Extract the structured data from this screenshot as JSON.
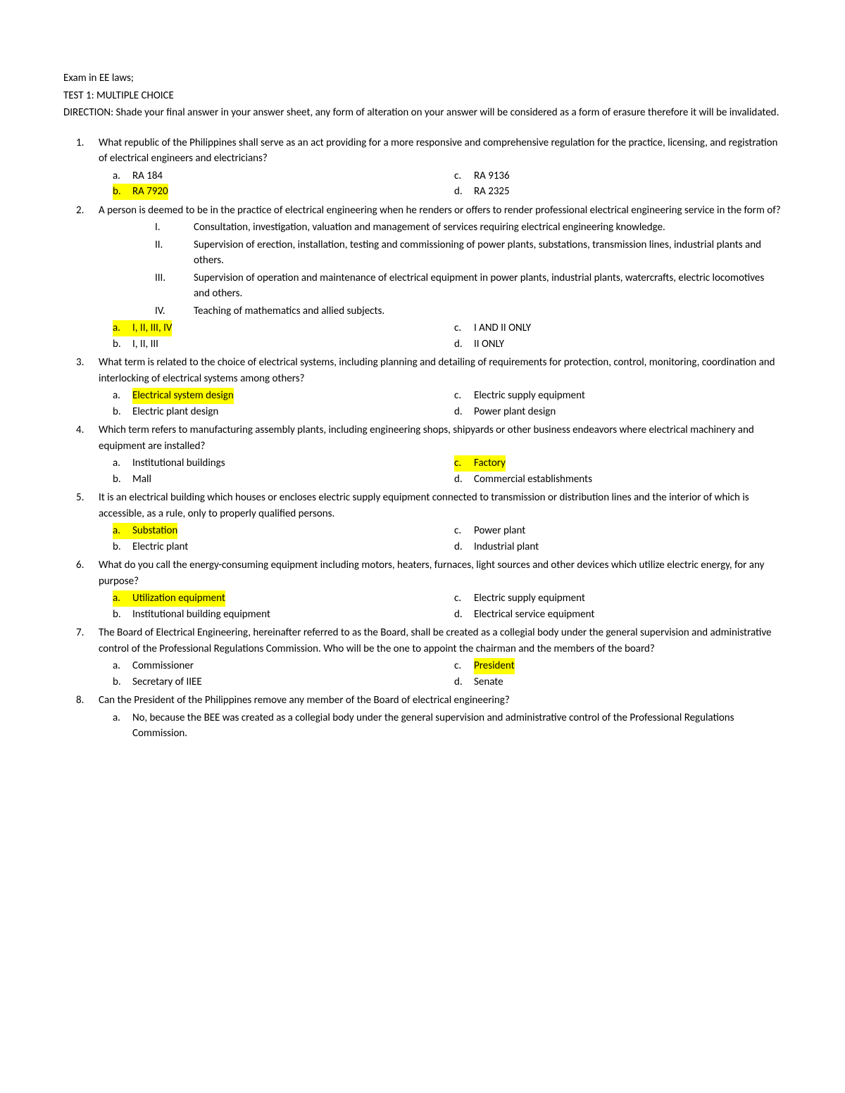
{
  "header": {
    "line1": "Exam in EE laws;",
    "line2": "TEST 1: MULTIPLE CHOICE",
    "direction": "DIRECTION: Shade your final answer in your answer sheet, any form of alteration on your answer will be considered as a form of erasure therefore it will be invalidated."
  },
  "highlight_color": "#ffff00",
  "questions": [
    {
      "num": "1.",
      "text": "What republic of the Philippines shall serve as an act providing for a more responsive and comprehensive regulation for the practice, licensing, and registration of electrical engineers and electricians?",
      "choices": [
        {
          "label": "a.",
          "text": "RA 184",
          "hl_label": false,
          "hl_text": false
        },
        {
          "label": "c.",
          "text": "RA 9136",
          "hl_label": false,
          "hl_text": false
        },
        {
          "label": "b.",
          "text": "RA 7920",
          "hl_label": true,
          "hl_text": true
        },
        {
          "label": "d.",
          "text": "RA 2325",
          "hl_label": false,
          "hl_text": false
        }
      ]
    },
    {
      "num": "2.",
      "text": "A person is deemed to be in the practice of electrical engineering when he renders or offers to render professional electrical engineering service in the form of?",
      "roman": [
        {
          "label": "I.",
          "text": "Consultation, investigation, valuation and management of services requiring electrical engineering knowledge."
        },
        {
          "label": "II.",
          "text": "Supervision of erection, installation, testing and commissioning of power plants, substations, transmission lines, industrial plants and others."
        },
        {
          "label": "III.",
          "text": "Supervision of operation and maintenance of electrical equipment in power plants, industrial plants, watercrafts, electric locomotives and others."
        },
        {
          "label": "IV.",
          "text": "Teaching of mathematics and allied subjects."
        }
      ],
      "choices": [
        {
          "label": "a.",
          "text": "I, II, III, IV",
          "hl_label": true,
          "hl_text": true
        },
        {
          "label": "c.",
          "text": "I AND II ONLY",
          "hl_label": false,
          "hl_text": false
        },
        {
          "label": "b.",
          "text": "I, II, III",
          "hl_label": false,
          "hl_text": false
        },
        {
          "label": "d.",
          "text": "II ONLY",
          "hl_label": false,
          "hl_text": false
        }
      ]
    },
    {
      "num": "3.",
      "text": "What term is related to the choice of electrical systems, including planning and detailing of requirements for protection, control, monitoring, coordination and interlocking of electrical systems among others?",
      "choices": [
        {
          "label": "a.",
          "text": "Electrical system design",
          "hl_label": false,
          "hl_text": true
        },
        {
          "label": "c.",
          "text": "Electric supply equipment",
          "hl_label": false,
          "hl_text": false
        },
        {
          "label": "b.",
          "text": "Electric plant design",
          "hl_label": false,
          "hl_text": false
        },
        {
          "label": "d.",
          "text": "Power plant design",
          "hl_label": false,
          "hl_text": false
        }
      ]
    },
    {
      "num": "4.",
      "text": "Which term refers to manufacturing assembly plants, including engineering shops, shipyards or other business endeavors where electrical machinery and equipment are installed?",
      "choices": [
        {
          "label": "a.",
          "text": "Institutional buildings",
          "hl_label": false,
          "hl_text": false
        },
        {
          "label": "c.",
          "text": "Factory",
          "hl_label": true,
          "hl_text": true
        },
        {
          "label": "b.",
          "text": "Mall",
          "hl_label": false,
          "hl_text": false
        },
        {
          "label": "d.",
          "text": "Commercial establishments",
          "hl_label": false,
          "hl_text": false
        }
      ]
    },
    {
      "num": "5.",
      "text": "It is an electrical building which houses or encloses electric supply equipment connected to transmission or distribution lines and the interior of which is accessible, as a rule, only to properly qualified persons.",
      "choices": [
        {
          "label": "a.",
          "text": "Substation",
          "hl_label": true,
          "hl_text": true
        },
        {
          "label": "c.",
          "text": "Power plant",
          "hl_label": false,
          "hl_text": false
        },
        {
          "label": "b.",
          "text": "Electric plant",
          "hl_label": false,
          "hl_text": false
        },
        {
          "label": "d.",
          "text": "Industrial plant",
          "hl_label": false,
          "hl_text": false
        }
      ]
    },
    {
      "num": "6.",
      "text": "What do you call the energy-consuming equipment including motors, heaters, furnaces, light sources and other devices which utilize electric energy, for any purpose?",
      "choices": [
        {
          "label": "a.",
          "text": "Utilization equipment",
          "hl_label": true,
          "hl_text": true
        },
        {
          "label": "c.",
          "text": "Electric supply equipment",
          "hl_label": false,
          "hl_text": false
        },
        {
          "label": "b.",
          "text": "Institutional building equipment",
          "hl_label": false,
          "hl_text": false
        },
        {
          "label": "d.",
          "text": "Electrical service equipment",
          "hl_label": false,
          "hl_text": false
        }
      ]
    },
    {
      "num": "7.",
      "text": "The Board of Electrical Engineering, hereinafter referred to as the Board, shall be created as a collegial body under the general supervision and administrative control of the Professional Regulations Commission. Who will be the one to appoint the chairman and the members of the board?",
      "choices": [
        {
          "label": "a.",
          "text": "Commissioner",
          "hl_label": false,
          "hl_text": false
        },
        {
          "label": "c.",
          "text": "President",
          "hl_label": false,
          "hl_text": true
        },
        {
          "label": "b.",
          "text": "Secretary of IIEE",
          "hl_label": false,
          "hl_text": false
        },
        {
          "label": "d.",
          "text": "Senate",
          "hl_label": false,
          "hl_text": false
        }
      ]
    },
    {
      "num": "8.",
      "text": "Can the President of the Philippines remove any member of the Board of electrical engineering?",
      "sub_choices": [
        {
          "label": "a.",
          "text": "No, because the BEE was created as a collegial body under the general supervision and administrative control of the Professional Regulations Commission."
        }
      ]
    }
  ]
}
